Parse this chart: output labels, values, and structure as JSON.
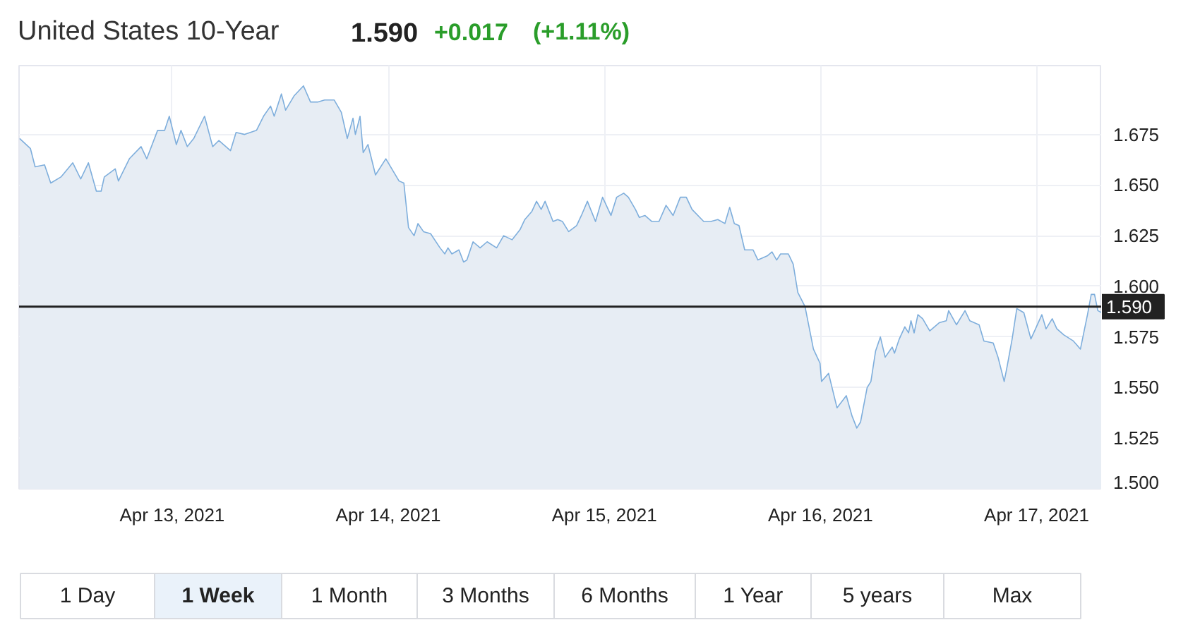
{
  "chart_data": {
    "type": "area",
    "title": "United States 10-Year",
    "annotations": [
      "1.590",
      "+0.017",
      "(+1.11%)",
      "1 Day",
      "1 Week",
      "1 Month",
      "3 Months",
      "6 Months",
      "1 Year",
      "5 years",
      "Max"
    ],
    "xlim": [
      "2021-04-12T07:00",
      "2021-04-17T07:15"
    ],
    "xticks": [
      {
        "value": "2021-04-13",
        "label": "Apr 13, 2021"
      },
      {
        "value": "2021-04-14",
        "label": "Apr 14, 2021"
      },
      {
        "value": "2021-04-15",
        "label": "Apr 15, 2021"
      },
      {
        "value": "2021-04-16",
        "label": "Apr 16, 2021"
      },
      {
        "value": "2021-04-17",
        "label": "Apr 17, 2021"
      }
    ],
    "ylim": [
      1.5,
      1.709
    ],
    "yticks": [
      {
        "value": 1.5,
        "label": "1.500"
      },
      {
        "value": 1.525,
        "label": "1.525"
      },
      {
        "value": 1.55,
        "label": "1.550"
      },
      {
        "value": 1.575,
        "label": "1.575"
      },
      {
        "value": 1.6,
        "label": "1.600"
      },
      {
        "value": 1.625,
        "label": "1.625"
      },
      {
        "value": 1.65,
        "label": "1.650"
      },
      {
        "value": 1.675,
        "label": "1.675"
      }
    ],
    "grid": true,
    "ref_lines": [
      {
        "axis": "y",
        "value": 1.59,
        "label": "1.590",
        "color": "#222222"
      }
    ],
    "x": [
      "2021-04-12T07:04",
      "2021-04-12T08:16",
      "2021-04-12T08:47",
      "2021-04-12T09:50",
      "2021-04-12T10:31",
      "2021-04-12T11:39",
      "2021-04-12T12:58",
      "2021-04-12T13:51",
      "2021-04-12T14:42",
      "2021-04-12T15:35",
      "2021-04-12T16:07",
      "2021-04-12T16:28",
      "2021-04-12T17:41",
      "2021-04-12T18:02",
      "2021-04-12T19:15",
      "2021-04-12T20:33",
      "2021-04-12T21:11",
      "2021-04-12T22:23",
      "2021-04-12T23:10",
      "2021-04-12T23:41",
      "2021-04-13T00:28",
      "2021-04-13T00:59",
      "2021-04-13T01:41",
      "2021-04-13T02:24",
      "2021-04-13T03:36",
      "2021-04-13T04:30",
      "2021-04-13T05:11",
      "2021-04-13T06:29",
      "2021-04-13T07:06",
      "2021-04-13T08:03",
      "2021-04-13T09:22",
      "2021-04-13T10:09",
      "2021-04-13T10:56",
      "2021-04-13T11:20",
      "2021-04-13T12:08",
      "2021-04-13T12:36",
      "2021-04-13T13:32",
      "2021-04-13T14:35",
      "2021-04-13T15:22",
      "2021-04-13T16:09",
      "2021-04-13T16:56",
      "2021-04-13T18:00",
      "2021-04-13T18:47",
      "2021-04-13T19:27",
      "2021-04-13T20:05",
      "2021-04-13T20:21",
      "2021-04-13T20:52",
      "2021-04-13T21:13",
      "2021-04-13T21:45",
      "2021-04-13T22:35",
      "2021-04-13T23:44",
      "2021-04-14T01:12",
      "2021-04-14T01:44",
      "2021-04-14T02:15",
      "2021-04-14T02:52",
      "2021-04-14T03:18",
      "2021-04-14T03:55",
      "2021-04-14T04:42",
      "2021-04-14T05:45",
      "2021-04-14T06:17",
      "2021-04-14T06:38",
      "2021-04-14T07:04",
      "2021-04-14T07:51",
      "2021-04-14T08:22",
      "2021-04-14T08:44",
      "2021-04-14T09:25",
      "2021-04-14T10:12",
      "2021-04-14T10:59",
      "2021-04-14T12:02",
      "2021-04-14T12:49",
      "2021-04-14T13:45",
      "2021-04-14T14:38",
      "2021-04-14T15:10",
      "2021-04-14T15:57",
      "2021-04-14T16:28",
      "2021-04-14T16:59",
      "2021-04-14T17:25",
      "2021-04-14T18:18",
      "2021-04-14T18:49",
      "2021-04-14T19:21",
      "2021-04-14T20:02",
      "2021-04-14T20:55",
      "2021-04-14T21:27",
      "2021-04-14T22:07",
      "2021-04-14T23:01",
      "2021-04-14T23:48",
      "2021-04-15T00:44",
      "2021-04-15T01:22",
      "2021-04-15T02:09",
      "2021-04-15T02:40",
      "2021-04-15T03:27",
      "2021-04-15T03:53",
      "2021-04-15T04:30",
      "2021-04-15T05:17",
      "2021-04-15T06:04",
      "2021-04-15T06:51",
      "2021-04-15T07:38",
      "2021-04-15T08:26",
      "2021-04-15T09:06",
      "2021-04-15T09:44",
      "2021-04-15T11:02",
      "2021-04-15T11:49",
      "2021-04-15T12:36",
      "2021-04-15T13:23",
      "2021-04-15T13:55",
      "2021-04-15T14:26",
      "2021-04-15T14:57",
      "2021-04-15T15:35",
      "2021-04-15T16:31",
      "2021-04-15T17:03",
      "2021-04-15T18:05",
      "2021-04-15T18:37",
      "2021-04-15T19:08",
      "2021-04-15T19:34",
      "2021-04-15T20:26",
      "2021-04-15T20:58",
      "2021-04-15T21:29",
      "2021-04-15T22:17",
      "2021-04-15T23:13",
      "2021-04-15T23:57",
      "2021-04-16T00:07",
      "2021-04-16T00:54",
      "2021-04-16T01:50",
      "2021-04-16T02:52",
      "2021-04-16T03:30",
      "2021-04-16T04:02",
      "2021-04-16T04:27",
      "2021-04-16T05:11",
      "2021-04-16T05:36",
      "2021-04-16T06:07",
      "2021-04-16T06:39",
      "2021-04-16T07:11",
      "2021-04-16T07:58",
      "2021-04-16T08:13",
      "2021-04-16T08:45",
      "2021-04-16T09:22",
      "2021-04-16T09:47",
      "2021-04-16T10:03",
      "2021-04-16T10:24",
      "2021-04-16T10:49",
      "2021-04-16T11:21",
      "2021-04-16T12:08",
      "2021-04-16T13:11",
      "2021-04-16T13:58",
      "2021-04-16T14:14",
      "2021-04-16T15:06",
      "2021-04-16T16:03",
      "2021-04-16T16:35",
      "2021-04-16T17:37",
      "2021-04-16T18:09",
      "2021-04-16T19:11",
      "2021-04-16T19:43",
      "2021-04-16T20:24",
      "2021-04-16T20:45",
      "2021-04-16T21:17",
      "2021-04-16T21:48",
      "2021-04-16T22:35",
      "2021-04-16T23:22",
      "2021-04-16T23:53",
      "2021-04-17T00:35",
      "2021-04-17T01:03",
      "2021-04-17T01:44",
      "2021-04-17T02:15",
      "2021-04-17T03:02",
      "2021-04-17T04:05",
      "2021-04-17T04:52",
      "2021-04-17T05:39",
      "2021-04-17T06:04",
      "2021-04-17T06:26",
      "2021-04-17T06:48",
      "2021-04-17T07:13"
    ],
    "series": [
      {
        "color": "#7eaedc",
        "values": [
          1.673,
          1.668,
          1.659,
          1.66,
          1.651,
          1.654,
          1.661,
          1.653,
          1.661,
          1.647,
          1.647,
          1.654,
          1.658,
          1.652,
          1.663,
          1.669,
          1.663,
          1.677,
          1.677,
          1.684,
          1.67,
          1.677,
          1.669,
          1.673,
          1.684,
          1.669,
          1.672,
          1.667,
          1.676,
          1.675,
          1.677,
          1.684,
          1.689,
          1.684,
          1.695,
          1.687,
          1.694,
          1.699,
          1.691,
          1.691,
          1.692,
          1.692,
          1.686,
          1.673,
          1.683,
          1.675,
          1.684,
          1.666,
          1.67,
          1.655,
          1.663,
          1.652,
          1.651,
          1.629,
          1.625,
          1.631,
          1.627,
          1.626,
          1.619,
          1.616,
          1.619,
          1.616,
          1.618,
          1.612,
          1.613,
          1.622,
          1.619,
          1.622,
          1.619,
          1.625,
          1.623,
          1.628,
          1.633,
          1.637,
          1.642,
          1.638,
          1.642,
          1.632,
          1.633,
          1.632,
          1.627,
          1.63,
          1.635,
          1.642,
          1.632,
          1.644,
          1.635,
          1.644,
          1.646,
          1.644,
          1.638,
          1.634,
          1.635,
          1.632,
          1.632,
          1.64,
          1.635,
          1.644,
          1.644,
          1.638,
          1.632,
          1.632,
          1.633,
          1.631,
          1.639,
          1.631,
          1.63,
          1.618,
          1.618,
          1.613,
          1.615,
          1.617,
          1.613,
          1.616,
          1.616,
          1.611,
          1.597,
          1.59,
          1.569,
          1.562,
          1.553,
          1.557,
          1.54,
          1.546,
          1.536,
          1.53,
          1.533,
          1.55,
          1.553,
          1.568,
          1.575,
          1.565,
          1.57,
          1.567,
          1.574,
          1.58,
          1.577,
          1.583,
          1.577,
          1.586,
          1.584,
          1.578,
          1.582,
          1.583,
          1.588,
          1.581,
          1.588,
          1.583,
          1.581,
          1.573,
          1.572,
          1.565,
          1.553,
          1.561,
          1.574,
          1.589,
          1.587,
          1.574,
          1.579,
          1.586,
          1.579,
          1.584,
          1.579,
          1.576,
          1.573,
          1.569,
          1.586,
          1.596,
          1.596,
          1.588,
          1.587
        ]
      }
    ]
  }
}
